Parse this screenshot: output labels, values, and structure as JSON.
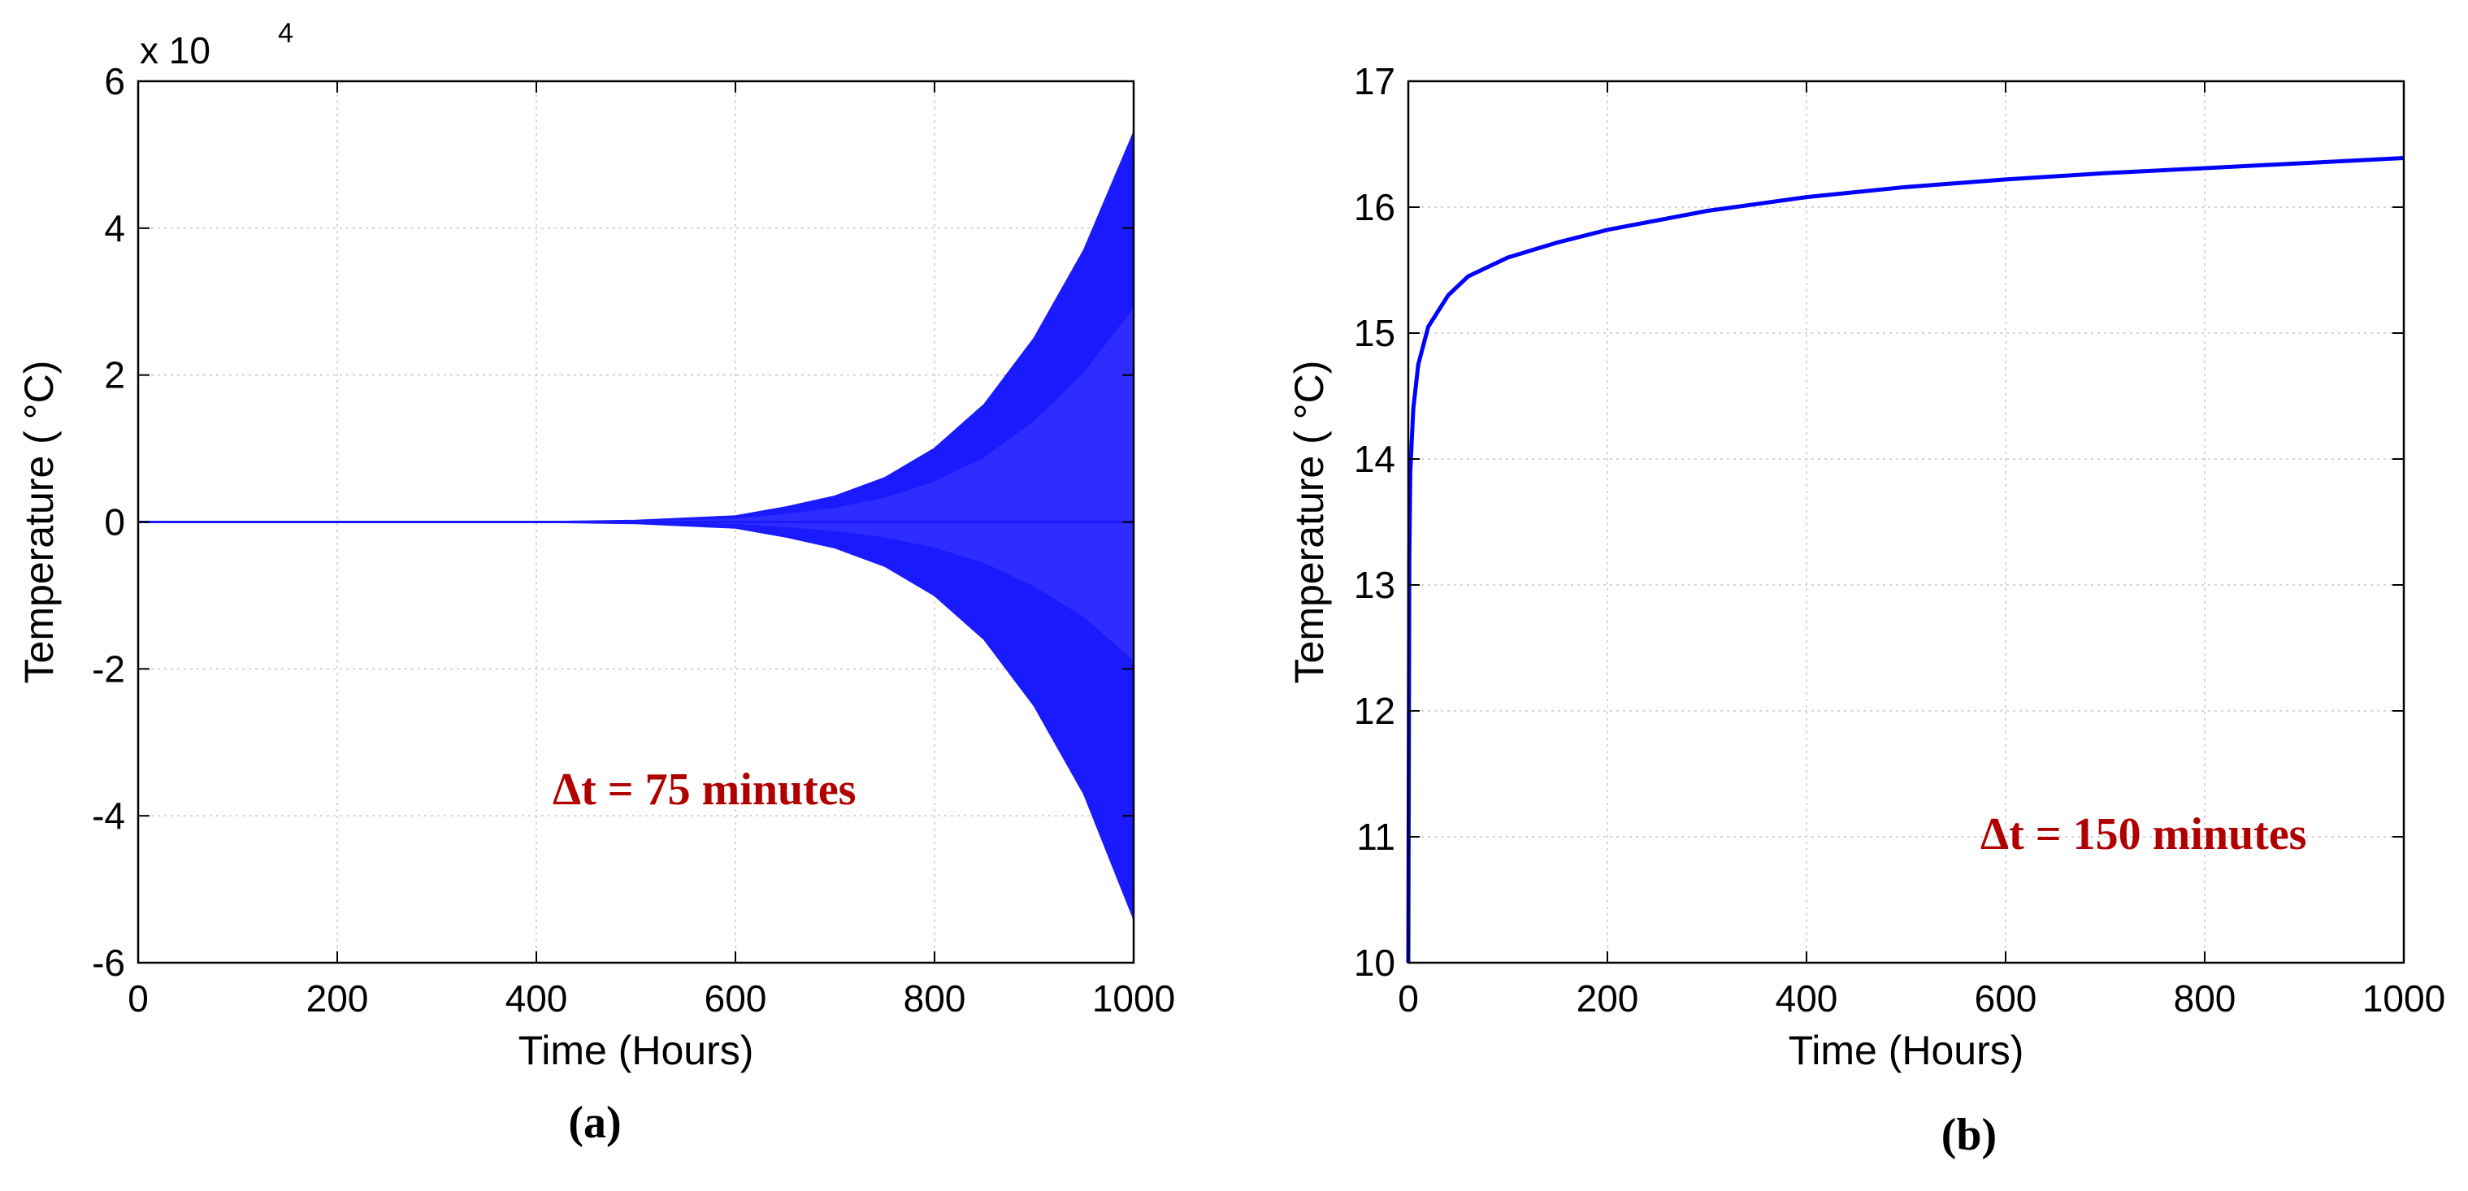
{
  "chart_data": [
    {
      "type": "line",
      "caption": "(a)",
      "xlabel": "Time (Hours)",
      "ylabel": "Temperature ( °C)",
      "y_multiplier_label": "x 10",
      "y_multiplier_exponent": "4",
      "xlim": [
        0,
        1000
      ],
      "ylim": [
        -6,
        6
      ],
      "x_ticks": [
        "0",
        "200",
        "400",
        "600",
        "800",
        "1000"
      ],
      "y_ticks": [
        "-6",
        "-4",
        "-2",
        "0",
        "2",
        "4",
        "6"
      ],
      "grid": true,
      "annotation": "Δt = 75 minutes",
      "envelope": {
        "x": [
          0,
          400,
          500,
          600,
          650,
          700,
          750,
          800,
          850,
          900,
          950,
          1000
        ],
        "y_upper": [
          0,
          0.0,
          0.02,
          0.08,
          0.2,
          0.35,
          0.6,
          1.0,
          1.6,
          2.5,
          3.7,
          5.3
        ],
        "y_lower": [
          0,
          0.0,
          -0.02,
          -0.08,
          -0.2,
          -0.35,
          -0.6,
          -1.0,
          -1.6,
          -2.5,
          -3.7,
          -5.4
        ]
      },
      "color": "#1a1aff"
    },
    {
      "type": "line",
      "caption": "(b)",
      "xlabel": "Time (Hours)",
      "ylabel": "Temperature ( °C)",
      "xlim": [
        0,
        1000
      ],
      "ylim": [
        10,
        17
      ],
      "x_ticks": [
        "0",
        "200",
        "400",
        "600",
        "800",
        "1000"
      ],
      "y_ticks": [
        "10",
        "11",
        "12",
        "13",
        "14",
        "15",
        "16",
        "17"
      ],
      "grid": true,
      "annotation": "Δt = 150 minutes",
      "series": [
        {
          "x": [
            0,
            1,
            2,
            5,
            10,
            20,
            40,
            60,
            100,
            150,
            200,
            300,
            400,
            500,
            600,
            700,
            800,
            900,
            1000
          ],
          "y": [
            10,
            13.2,
            13.9,
            14.4,
            14.75,
            15.05,
            15.3,
            15.45,
            15.6,
            15.72,
            15.82,
            15.97,
            16.08,
            16.16,
            16.22,
            16.27,
            16.31,
            16.35,
            16.39
          ]
        }
      ],
      "color": "#0000ff"
    }
  ]
}
